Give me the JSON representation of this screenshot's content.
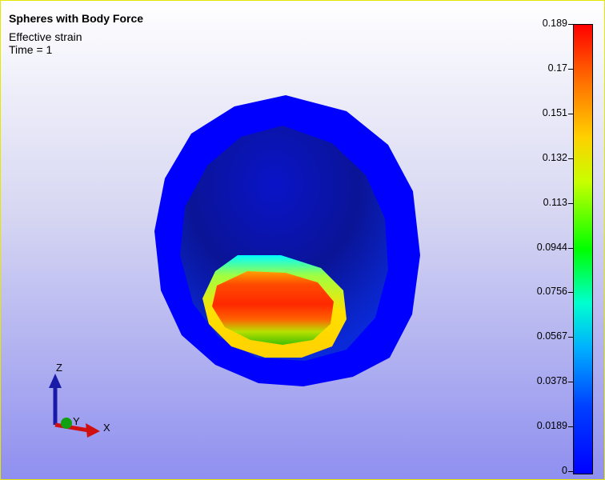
{
  "title": "Spheres with Body Force",
  "variable": "Effective strain",
  "time_label": "Time = 1",
  "colorbar": {
    "ticks": [
      "0.189",
      "0.17",
      "0.151",
      "0.132",
      "0.113",
      "0.0944",
      "0.0756",
      "0.0567",
      "0.0378",
      "0.0189",
      "0"
    ]
  },
  "triad": {
    "z_label": "Z",
    "y_label": "Y",
    "x_label": "X"
  },
  "colors": {
    "outer_sphere": "#0000ff",
    "max_strain": "#ff2a00",
    "frame": "#e6e600"
  }
}
